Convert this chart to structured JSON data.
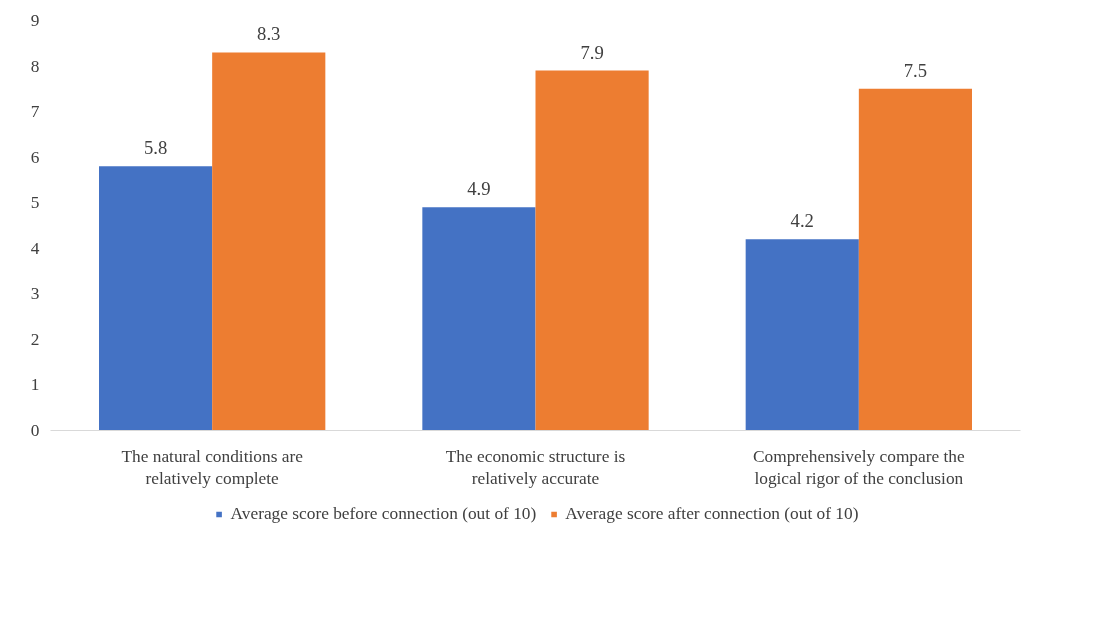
{
  "chart_data": {
    "type": "bar",
    "categories": [
      "The natural conditions are relatively complete",
      "The economic structure is relatively accurate",
      "Comprehensively compare the logical rigor of the conclusion"
    ],
    "series": [
      {
        "name": "Average score before connection (out of 10)",
        "color": "#4472c4",
        "values": [
          5.8,
          4.9,
          4.2
        ]
      },
      {
        "name": "Average score after connection (out of 10)",
        "color": "#ed7d31",
        "values": [
          8.3,
          7.9,
          7.5
        ]
      }
    ],
    "ylim": [
      0,
      9
    ],
    "yticks": [
      0,
      1,
      2,
      3,
      4,
      5,
      6,
      7,
      8,
      9
    ],
    "grid": false,
    "legend": "bottom",
    "data_labels": true
  }
}
